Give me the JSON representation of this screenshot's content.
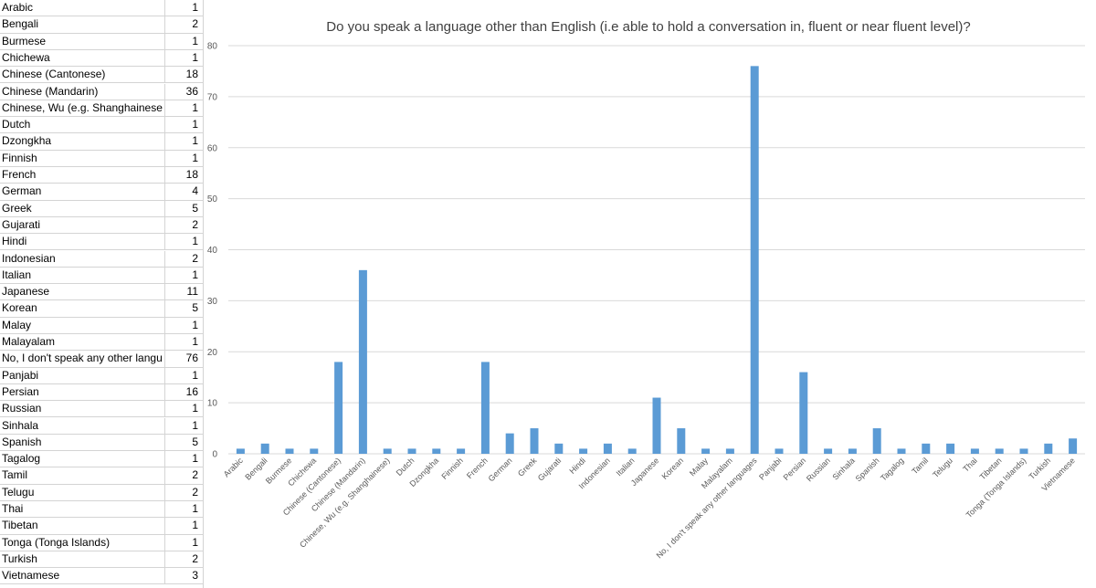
{
  "sheet": {
    "rows": [
      {
        "label": "Arabic",
        "value": "1"
      },
      {
        "label": "Bengali",
        "value": "2"
      },
      {
        "label": "Burmese",
        "value": "1"
      },
      {
        "label": "Chichewa",
        "value": "1"
      },
      {
        "label": "Chinese (Cantonese)",
        "value": "18"
      },
      {
        "label": "Chinese (Mandarin)",
        "value": "36"
      },
      {
        "label": "Chinese, Wu (e.g. Shanghainese)",
        "value": "1"
      },
      {
        "label": "Dutch",
        "value": "1"
      },
      {
        "label": "Dzongkha",
        "value": "1"
      },
      {
        "label": "Finnish",
        "value": "1"
      },
      {
        "label": "French",
        "value": "18"
      },
      {
        "label": "German",
        "value": "4"
      },
      {
        "label": "Greek",
        "value": "5"
      },
      {
        "label": "Gujarati",
        "value": "2"
      },
      {
        "label": "Hindi",
        "value": "1"
      },
      {
        "label": "Indonesian",
        "value": "2"
      },
      {
        "label": "Italian",
        "value": "1"
      },
      {
        "label": "Japanese",
        "value": "11"
      },
      {
        "label": "Korean",
        "value": "5"
      },
      {
        "label": "Malay",
        "value": "1"
      },
      {
        "label": "Malayalam",
        "value": "1"
      },
      {
        "label": "No, I don't speak any other languages",
        "value": "76"
      },
      {
        "label": "Panjabi",
        "value": "1"
      },
      {
        "label": "Persian",
        "value": "16"
      },
      {
        "label": "Russian",
        "value": "1"
      },
      {
        "label": "Sinhala",
        "value": "1"
      },
      {
        "label": "Spanish",
        "value": "5"
      },
      {
        "label": "Tagalog",
        "value": "1"
      },
      {
        "label": "Tamil",
        "value": "2"
      },
      {
        "label": "Telugu",
        "value": "2"
      },
      {
        "label": "Thai",
        "value": "1"
      },
      {
        "label": "Tibetan",
        "value": "1"
      },
      {
        "label": "Tonga (Tonga Islands)",
        "value": "1"
      },
      {
        "label": "Turkish",
        "value": "2"
      },
      {
        "label": "Vietnamese",
        "value": "3"
      }
    ]
  },
  "chart_data": {
    "type": "bar",
    "title": "Do you speak a language other than English (i.e able to hold a conversation in, fluent or near fluent level)?",
    "categories": [
      "Arabic",
      "Bengali",
      "Burmese",
      "Chichewa",
      "Chinese (Cantonese)",
      "Chinese (Mandarin)",
      "Chinese, Wu (e.g. Shanghainese)",
      "Dutch",
      "Dzongkha",
      "Finnish",
      "French",
      "German",
      "Greek",
      "Gujarati",
      "Hindi",
      "Indonesian",
      "Italian",
      "Japanese",
      "Korean",
      "Malay",
      "Malayalam",
      "No, I don't speak any other languages",
      "Panjabi",
      "Persian",
      "Russian",
      "Sinhala",
      "Spanish",
      "Tagalog",
      "Tamil",
      "Telugu",
      "Thai",
      "Tibetan",
      "Tonga (Tonga Islands)",
      "Turkish",
      "Vietnamese"
    ],
    "values": [
      1,
      2,
      1,
      1,
      18,
      36,
      1,
      1,
      1,
      1,
      18,
      4,
      5,
      2,
      1,
      2,
      1,
      11,
      5,
      1,
      1,
      76,
      1,
      16,
      1,
      1,
      5,
      1,
      2,
      2,
      1,
      1,
      1,
      2,
      3
    ],
    "yticks": [
      0,
      10,
      20,
      30,
      40,
      50,
      60,
      70,
      80
    ],
    "ylim": [
      0,
      80
    ],
    "grid": true,
    "bar_color": "#5b9bd5",
    "xlabel": "",
    "ylabel": ""
  }
}
